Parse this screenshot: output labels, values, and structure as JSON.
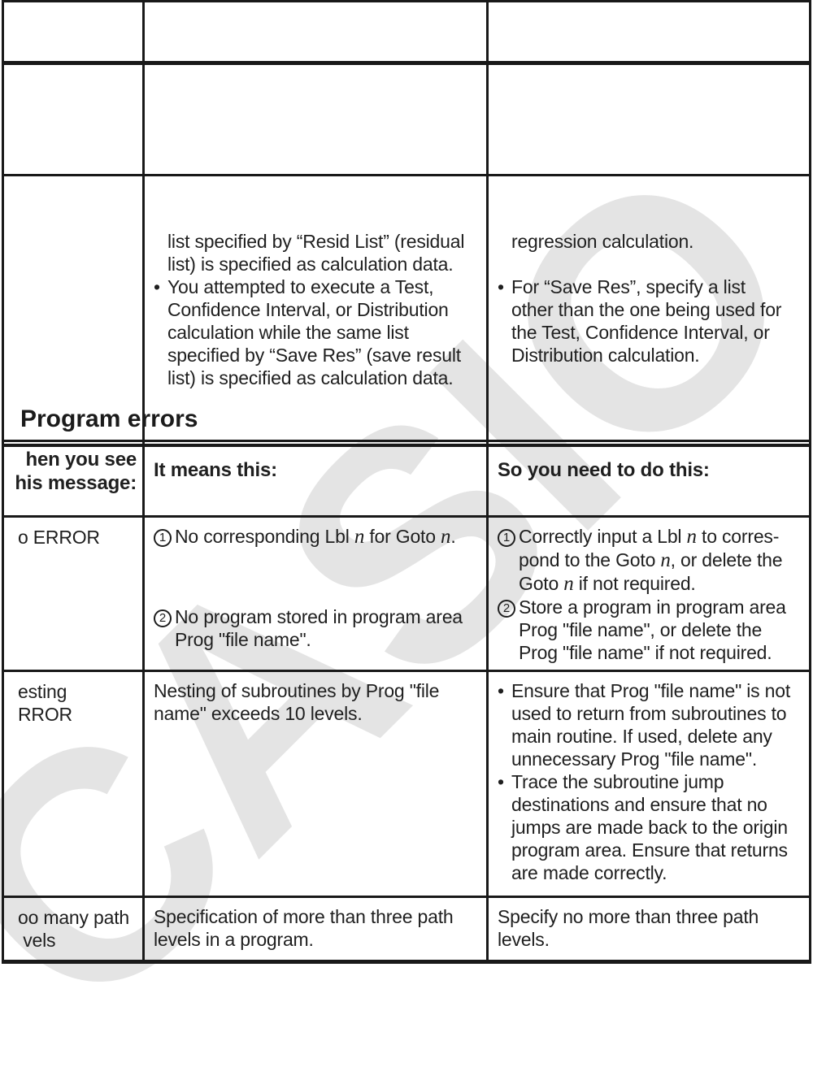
{
  "watermark": {
    "text": "CASIO",
    "color": "#e4e4e4"
  },
  "heading": "Program errors",
  "marks": {
    "bullet": "•",
    "n1": "1",
    "n2": "2"
  },
  "table1": {
    "row3": {
      "message": "",
      "means_cont": "list specified by “Resid List” (residual\nlist) is specified as calculation data.",
      "means_bullet": "You attempted to execute a Test,\nConfidence Interval, or Distribution\ncalculation while the same list\nspecified by “Save Res” (save result\nlist) is specified as calculation data.",
      "action_cont": "regression calculation.",
      "action_bullet": "For “Save Res”, specify a list\nother than the one being used for\nthe Test, Confidence Interval, or\nDistribution calculation."
    }
  },
  "table2": {
    "header": {
      "col1": "hen you see\nhis message:",
      "col2": "It means this:",
      "col3": "So you need to do this:"
    },
    "row1": {
      "message": "o ERROR",
      "means1": [
        {
          "t": "No corresponding Lbl "
        },
        {
          "t": "n",
          "i": true
        },
        {
          "t": " for Goto "
        },
        {
          "t": "n",
          "i": true
        },
        {
          "t": "."
        }
      ],
      "means2": "No program stored in program area\nProg \"file name\".",
      "action1": [
        {
          "t": "Correctly input a Lbl "
        },
        {
          "t": "n",
          "i": true
        },
        {
          "t": " to corres-\npond to the Goto "
        },
        {
          "t": "n",
          "i": true
        },
        {
          "t": ", or delete the\nGoto "
        },
        {
          "t": "n",
          "i": true
        },
        {
          "t": " if not required."
        }
      ],
      "action2": "Store a program in program area\nProg \"file name\", or delete the\nProg \"file name\" if not required."
    },
    "row2": {
      "message": "esting\nRROR",
      "means": "Nesting of subroutines by Prog \"file\nname\" exceeds 10 levels.",
      "action_bullet1": "Ensure that Prog \"file name\" is not\nused to return from subroutines to\nmain routine. If used, delete any\nunnecessary Prog \"file name\".",
      "action_bullet2": "Trace the subroutine jump\ndestinations and ensure that no\njumps are made back to the origin\nprogram area. Ensure that returns\nare made correctly."
    },
    "row3": {
      "message": "oo many path\n vels",
      "means": "Specification of more than three path\nlevels in a program.",
      "action": "Specify no more than three path\nlevels."
    }
  }
}
